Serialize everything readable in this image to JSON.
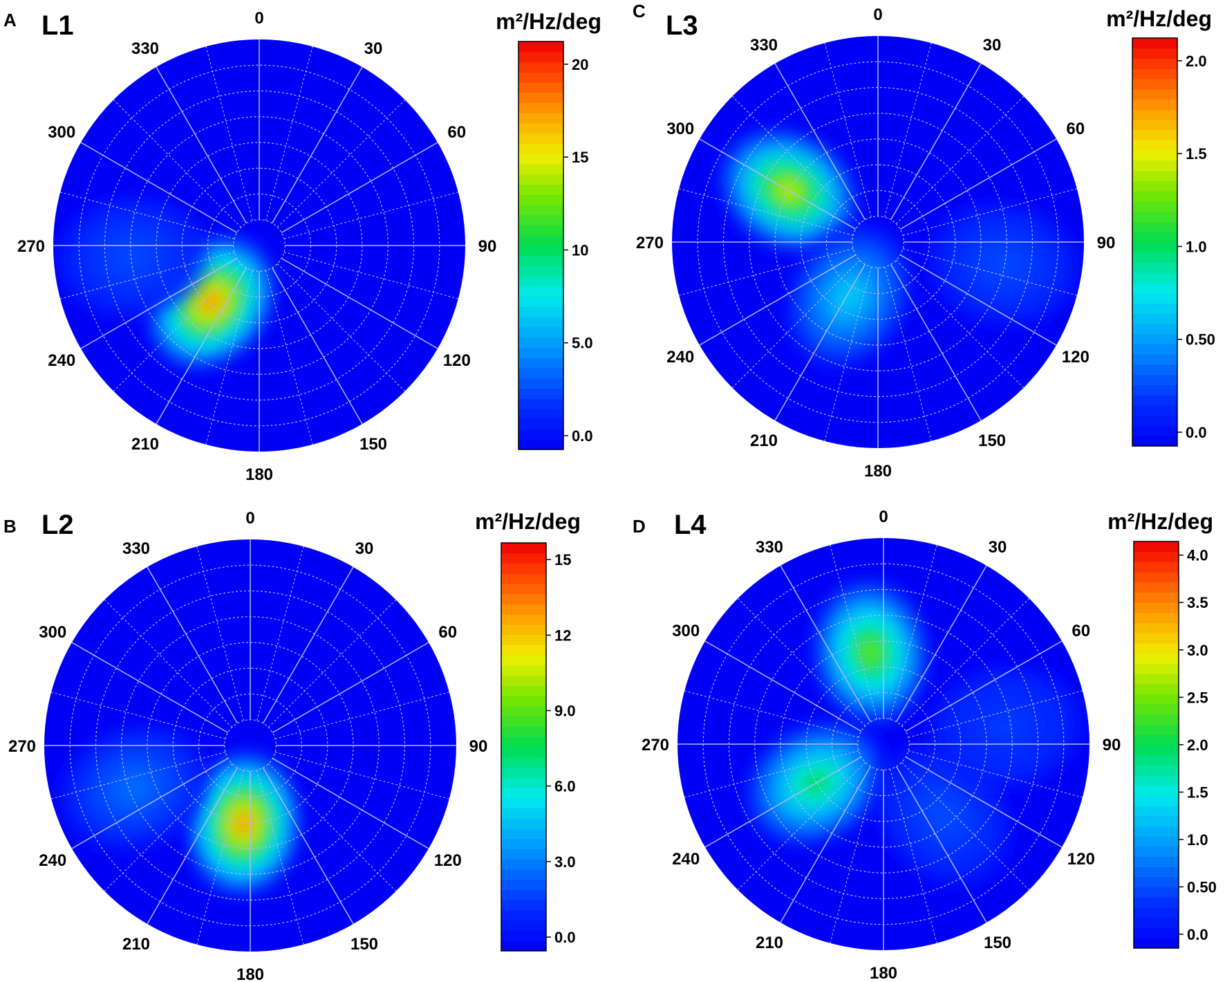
{
  "chart_data": [
    {
      "type": "polar-contour",
      "panel_letter": "A",
      "title": "L1",
      "colorbar_label": "m²/Hz/deg",
      "colorbar_ticks": [
        "0.0",
        "5.0",
        "10",
        "15",
        "20"
      ],
      "colorbar_range": [
        0,
        21
      ],
      "angle_ticks": [
        "0",
        "30",
        "60",
        "90",
        "120",
        "150",
        "180",
        "210",
        "240",
        "270",
        "300",
        "330"
      ],
      "peaks": [
        {
          "direction_deg": 220,
          "radius_frac": 0.36,
          "value": 17
        },
        {
          "direction_deg": 265,
          "radius_frac": 0.62,
          "value": 3
        }
      ]
    },
    {
      "type": "polar-contour",
      "panel_letter": "B",
      "title": "L2",
      "colorbar_label": "m²/Hz/deg",
      "colorbar_ticks": [
        "0.0",
        "3.0",
        "6.0",
        "9.0",
        "12",
        "15"
      ],
      "colorbar_range": [
        0,
        15.5
      ],
      "angle_ticks": [
        "0",
        "30",
        "60",
        "90",
        "120",
        "150",
        "180",
        "210",
        "240",
        "270",
        "300",
        "330"
      ],
      "peaks": [
        {
          "direction_deg": 185,
          "radius_frac": 0.38,
          "value": 12.5
        },
        {
          "direction_deg": 250,
          "radius_frac": 0.6,
          "value": 3
        }
      ]
    },
    {
      "type": "polar-contour",
      "panel_letter": "C",
      "title": "L3",
      "colorbar_label": "m²/Hz/deg",
      "colorbar_ticks": [
        "0.0",
        "0.50",
        "1.0",
        "1.5",
        "2.0"
      ],
      "colorbar_range": [
        0,
        2.1
      ],
      "angle_ticks": [
        "0",
        "30",
        "60",
        "90",
        "120",
        "150",
        "180",
        "210",
        "240",
        "270",
        "300",
        "330"
      ],
      "peaks": [
        {
          "direction_deg": 300,
          "radius_frac": 0.5,
          "value": 1.4
        },
        {
          "direction_deg": 208,
          "radius_frac": 0.3,
          "value": 0.7
        },
        {
          "direction_deg": 100,
          "radius_frac": 0.62,
          "value": 0.3
        }
      ]
    },
    {
      "type": "polar-contour",
      "panel_letter": "D",
      "title": "L4",
      "colorbar_label": "m²/Hz/deg",
      "colorbar_ticks": [
        "0.0",
        "0.50",
        "1.0",
        "1.5",
        "2.0",
        "2.5",
        "3.0",
        "3.5",
        "4.0"
      ],
      "colorbar_range": [
        0,
        4.1
      ],
      "angle_ticks": [
        "0",
        "30",
        "60",
        "90",
        "120",
        "150",
        "180",
        "210",
        "240",
        "270",
        "300",
        "330"
      ],
      "peaks": [
        {
          "direction_deg": 352,
          "radius_frac": 0.45,
          "value": 2.4
        },
        {
          "direction_deg": 240,
          "radius_frac": 0.38,
          "value": 2.0
        },
        {
          "direction_deg": 140,
          "radius_frac": 0.45,
          "value": 0.6
        },
        {
          "direction_deg": 82,
          "radius_frac": 0.6,
          "value": 0.5
        }
      ]
    }
  ]
}
